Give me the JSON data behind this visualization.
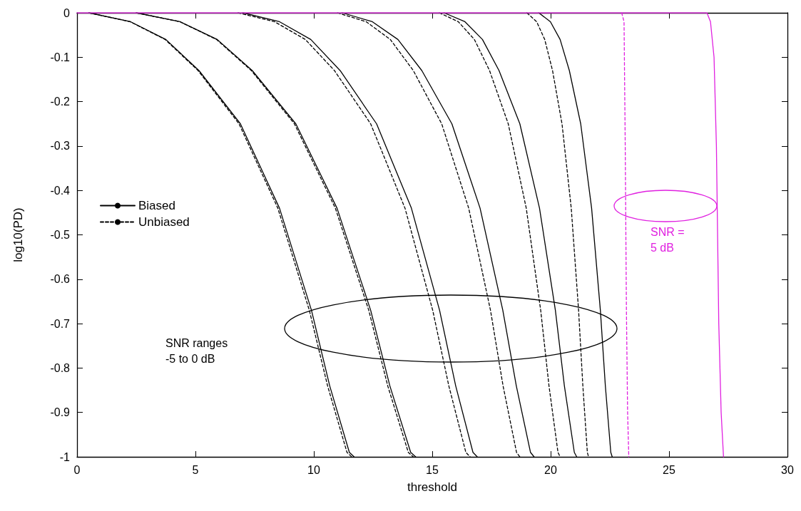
{
  "chart_data": {
    "type": "line",
    "xlabel": "threshold",
    "ylabel": "log10(PD)",
    "xlim": [
      0,
      30
    ],
    "xticks": [
      0,
      5,
      10,
      15,
      20,
      25,
      30
    ],
    "ylim": [
      -1,
      0
    ],
    "yticks": [
      -1,
      -0.9,
      -0.8,
      -0.7,
      -0.6,
      -0.5,
      -0.4,
      -0.3,
      -0.2,
      -0.1,
      0
    ],
    "grid": false,
    "legend": "left",
    "marker": "none",
    "line_style": "solid",
    "annotations": [
      "SNR ranges\n-5 to 0 dB",
      "SNR =\n5 dB"
    ],
    "series": [
      {
        "name": "Biased",
        "color": "#000000",
        "x": [
          0.5,
          2.26,
          3.75,
          5.15,
          6.9,
          8.55,
          9.9,
          10.67,
          11.5,
          11.7
        ],
        "values": [
          0,
          -0.02,
          -0.06,
          -0.13,
          -0.25,
          -0.44,
          -0.67,
          -0.84,
          -0.99,
          -1
        ]
      },
      {
        "name": "Unbiased",
        "color": "#000000",
        "line_style": "dashed",
        "x": [
          0.5,
          2.24,
          3.72,
          5.11,
          6.84,
          8.48,
          9.81,
          10.58,
          11.4,
          11.6
        ],
        "values": [
          0,
          -0.02,
          -0.06,
          -0.13,
          -0.25,
          -0.44,
          -0.67,
          -0.84,
          -0.99,
          -1
        ]
      },
      {
        "color": "#000000",
        "x": [
          2.5,
          4.35,
          5.92,
          7.4,
          9.24,
          10.98,
          12.4,
          13.21,
          14.09,
          14.3
        ],
        "values": [
          0,
          -0.02,
          -0.06,
          -0.13,
          -0.25,
          -0.44,
          -0.67,
          -0.84,
          -0.99,
          -1
        ]
      },
      {
        "color": "#000000",
        "line_style": "dashed",
        "x": [
          2.5,
          4.34,
          5.89,
          7.36,
          9.18,
          10.91,
          12.32,
          13.12,
          13.99,
          14.2
        ],
        "values": [
          0,
          -0.02,
          -0.06,
          -0.13,
          -0.25,
          -0.44,
          -0.67,
          -0.84,
          -0.99,
          -1
        ]
      },
      {
        "color": "#000000",
        "x": [
          7.0,
          8.55,
          9.87,
          11.11,
          12.65,
          14.12,
          15.31,
          15.99,
          16.72,
          16.9
        ],
        "values": [
          0,
          -0.02,
          -0.06,
          -0.13,
          -0.25,
          -0.44,
          -0.67,
          -0.84,
          -0.99,
          -1
        ]
      },
      {
        "color": "#000000",
        "line_style": "dashed",
        "x": [
          6.8,
          8.34,
          9.64,
          10.87,
          12.4,
          13.85,
          15.02,
          15.7,
          16.42,
          16.6
        ],
        "values": [
          0,
          -0.02,
          -0.06,
          -0.13,
          -0.25,
          -0.44,
          -0.67,
          -0.84,
          -0.99,
          -1
        ]
      },
      {
        "color": "#000000",
        "x": [
          11.2,
          12.47,
          13.55,
          14.56,
          15.83,
          17.02,
          17.98,
          18.55,
          19.15,
          19.3
        ],
        "values": [
          0,
          -0.02,
          -0.06,
          -0.13,
          -0.25,
          -0.44,
          -0.67,
          -0.84,
          -0.99,
          -1
        ]
      },
      {
        "color": "#000000",
        "line_style": "dashed",
        "x": [
          11.0,
          12.21,
          13.23,
          14.2,
          15.4,
          16.54,
          17.46,
          17.99,
          18.56,
          18.7
        ],
        "values": [
          0,
          -0.02,
          -0.06,
          -0.13,
          -0.25,
          -0.44,
          -0.67,
          -0.84,
          -0.99,
          -1
        ]
      },
      {
        "color": "#000000",
        "x": [
          15.5,
          16.38,
          17.12,
          17.82,
          18.7,
          19.53,
          20.2,
          20.58,
          21.0,
          21.1
        ],
        "values": [
          0,
          -0.02,
          -0.06,
          -0.13,
          -0.25,
          -0.44,
          -0.67,
          -0.84,
          -0.99,
          -1
        ]
      },
      {
        "color": "#000000",
        "line_style": "dashed",
        "x": [
          15.3,
          16.1,
          16.78,
          17.42,
          18.21,
          18.97,
          19.58,
          19.93,
          20.31,
          20.4
        ],
        "values": [
          0,
          -0.02,
          -0.06,
          -0.13,
          -0.25,
          -0.44,
          -0.67,
          -0.84,
          -0.99,
          -1
        ]
      },
      {
        "color": "#000000",
        "x": [
          19.5,
          19.99,
          20.4,
          20.79,
          21.27,
          21.73,
          22.1,
          22.31,
          22.54,
          22.6
        ],
        "values": [
          0,
          -0.02,
          -0.06,
          -0.13,
          -0.25,
          -0.44,
          -0.67,
          -0.84,
          -0.99,
          -1
        ]
      },
      {
        "color": "#000000",
        "line_style": "dashed",
        "x": [
          19.0,
          19.41,
          19.75,
          20.08,
          20.48,
          20.87,
          21.18,
          21.36,
          21.55,
          21.6
        ],
        "values": [
          0,
          -0.02,
          -0.06,
          -0.13,
          -0.25,
          -0.44,
          -0.67,
          -0.84,
          -0.99,
          -1
        ]
      },
      {
        "color": "#e020e0",
        "line_style": "dashed",
        "x": [
          23.0,
          23.1,
          23.15,
          23.2,
          23.25,
          23.3
        ],
        "values": [
          0,
          -0.02,
          -0.3,
          -0.67,
          -0.9,
          -1
        ]
      },
      {
        "color": "#e020e0",
        "x": [
          0,
          26.6,
          26.75,
          26.9,
          27.0,
          27.05,
          27.1,
          27.2,
          27.3
        ],
        "values": [
          0,
          0,
          -0.02,
          -0.1,
          -0.3,
          -0.5,
          -0.7,
          -0.9,
          -1
        ]
      }
    ]
  }
}
